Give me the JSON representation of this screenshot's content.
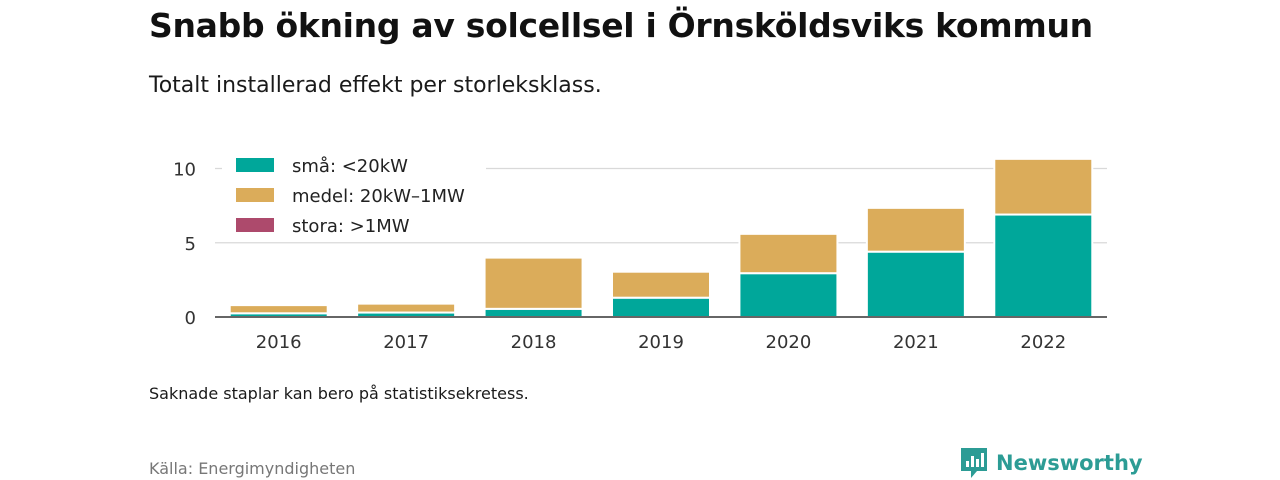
{
  "title": "Snabb ökning av solcellsel i Örnsköldsviks kommun",
  "subtitle": "Totalt installerad effekt per storleksklass.",
  "note": "Saknade staplar kan bero på statistiksekretess.",
  "source": "Källa: Energimyndigheten",
  "brand": {
    "name": "Newsworthy",
    "icon": "newsworthy-logo-icon",
    "color": "#2c9c95"
  },
  "chart_data": {
    "type": "bar",
    "stacked": true,
    "categories": [
      "2016",
      "2017",
      "2018",
      "2019",
      "2020",
      "2021",
      "2022"
    ],
    "series": [
      {
        "name": "små: <20kW",
        "color": "#00a79a",
        "values": [
          0.25,
          0.3,
          0.55,
          1.3,
          2.95,
          4.4,
          6.9
        ]
      },
      {
        "name": "medel: 20kW–1MW",
        "color": "#dbac5a",
        "values": [
          0.55,
          0.6,
          3.45,
          1.75,
          2.65,
          2.95,
          3.75
        ]
      },
      {
        "name": "stora: >1MW",
        "color": "#ad4a6c",
        "values": [
          0,
          0,
          0,
          0,
          0,
          0,
          0
        ]
      }
    ],
    "yticks": [
      0,
      5,
      10
    ],
    "ylim": [
      0,
      11
    ],
    "xlabel": "",
    "ylabel": "",
    "grid": true,
    "legend_position": "top-left"
  }
}
